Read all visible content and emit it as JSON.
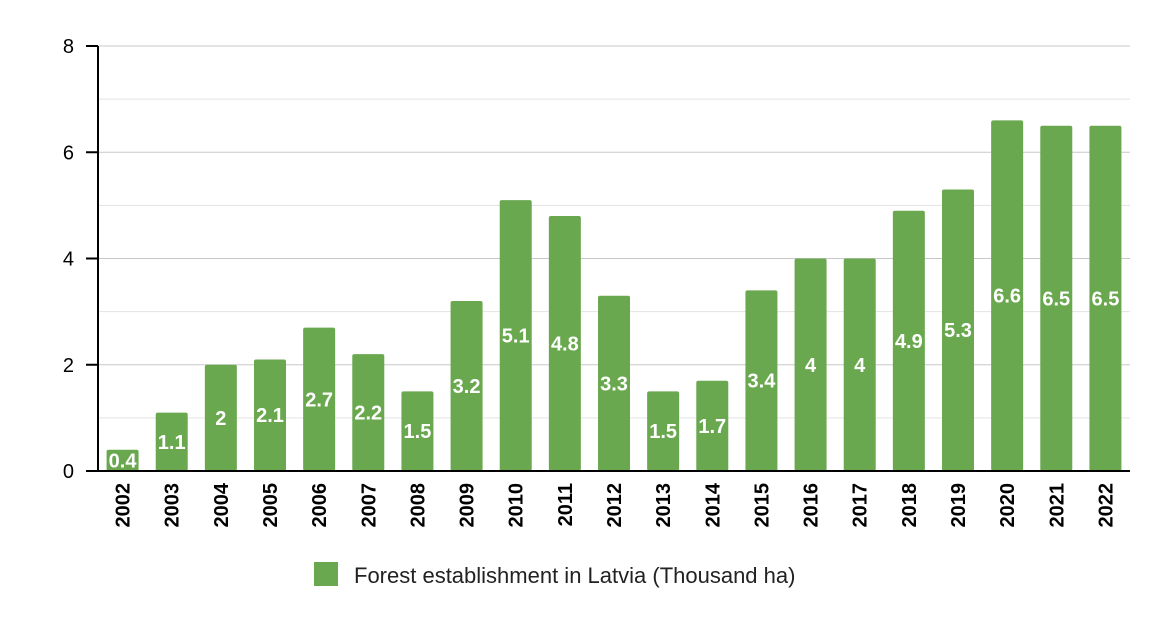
{
  "chart_data": {
    "type": "bar",
    "categories": [
      "2002",
      "2003",
      "2004",
      "2005",
      "2006",
      "2007",
      "2008",
      "2009",
      "2010",
      "2011",
      "2012",
      "2013",
      "2014",
      "2015",
      "2016",
      "2017",
      "2018",
      "2019",
      "2020",
      "2021",
      "2022"
    ],
    "series": [
      {
        "name": "Forest establishment in Latvia (Thousand ha)",
        "values": [
          0.4,
          1.1,
          2,
          2.1,
          2.7,
          2.2,
          1.5,
          3.2,
          5.1,
          4.8,
          3.3,
          1.5,
          1.7,
          3.4,
          4,
          4,
          4.9,
          5.3,
          6.6,
          6.5,
          6.5
        ],
        "data_labels": [
          "0.4",
          "1.1",
          "2",
          "2.1",
          "2.7",
          "2.2",
          "1.5",
          "3.2",
          "5.1",
          "4.8",
          "3.3",
          "1.5",
          "1.7",
          "3.4",
          "4",
          "4",
          "4.9",
          "5.3",
          "6.6",
          "6.5",
          "6.5"
        ]
      }
    ],
    "title": "",
    "xlabel": "",
    "ylabel": "",
    "ylim": [
      0,
      8
    ],
    "yticks": [
      0,
      2,
      4,
      6,
      8
    ],
    "ytick_labels": [
      "0",
      "2",
      "4",
      "6",
      "8"
    ],
    "grid": true,
    "legend_position": "bottom",
    "bar_color": "#6aa84f",
    "label_outline_color": "#6aa84f"
  }
}
